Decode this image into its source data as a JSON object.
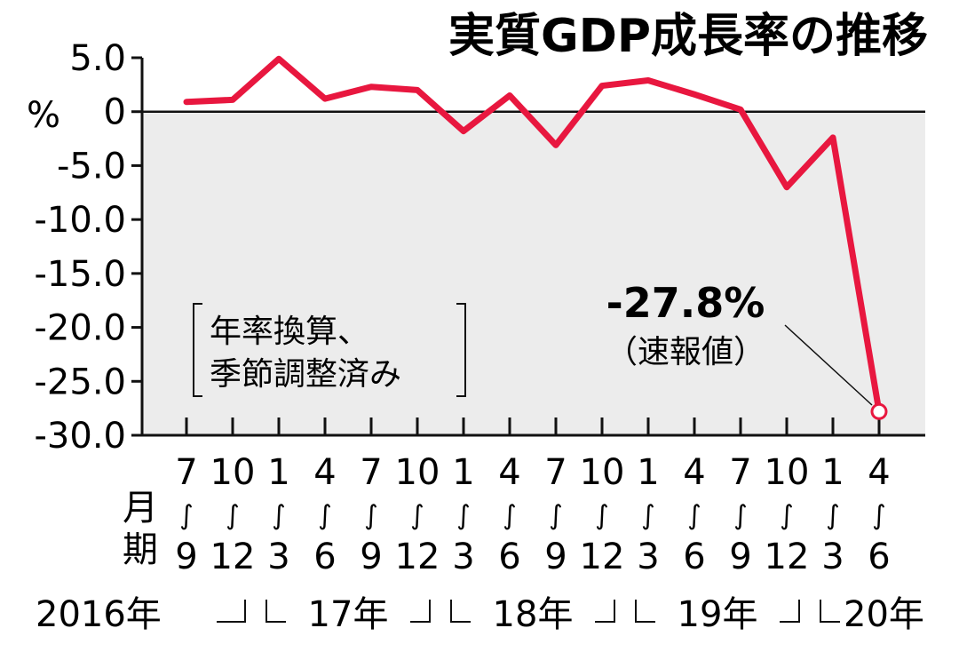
{
  "chart_data": {
    "type": "line",
    "title": "実質GDP成長率の推移",
    "ylabel": "%",
    "ylim": [
      -30,
      5
    ],
    "yticks": [
      "5.0",
      "0",
      "-5.0",
      "-10.0",
      "-15.0",
      "-20.0",
      "-25.0",
      "-30.0"
    ],
    "ytick_values": [
      5,
      0,
      -5,
      -10,
      -15,
      -20,
      -25,
      -30
    ],
    "period_axis_label": [
      "月",
      "期"
    ],
    "periods": [
      {
        "start": "7",
        "end": "9"
      },
      {
        "start": "10",
        "end": "12"
      },
      {
        "start": "1",
        "end": "3"
      },
      {
        "start": "4",
        "end": "6"
      },
      {
        "start": "7",
        "end": "9"
      },
      {
        "start": "10",
        "end": "12"
      },
      {
        "start": "1",
        "end": "3"
      },
      {
        "start": "4",
        "end": "6"
      },
      {
        "start": "7",
        "end": "9"
      },
      {
        "start": "10",
        "end": "12"
      },
      {
        "start": "1",
        "end": "3"
      },
      {
        "start": "4",
        "end": "6"
      },
      {
        "start": "7",
        "end": "9"
      },
      {
        "start": "10",
        "end": "12"
      },
      {
        "start": "1",
        "end": "3"
      },
      {
        "start": "4",
        "end": "6"
      }
    ],
    "period_separator": "∫",
    "years": [
      "2016年",
      "17年",
      "18年",
      "19年",
      "20年"
    ],
    "values": [
      0.9,
      1.1,
      4.9,
      1.2,
      2.3,
      2.0,
      -1.8,
      1.5,
      -3.1,
      2.4,
      2.9,
      1.6,
      0.2,
      -7.0,
      -2.4,
      -27.8
    ],
    "series_color": "#e8173f",
    "negative_region_fill": "#ececec",
    "grid": false,
    "note": [
      "年率換算、",
      "季節調整済み"
    ],
    "annotation": {
      "value": "-27.8%",
      "sub": "（速報値）"
    }
  }
}
